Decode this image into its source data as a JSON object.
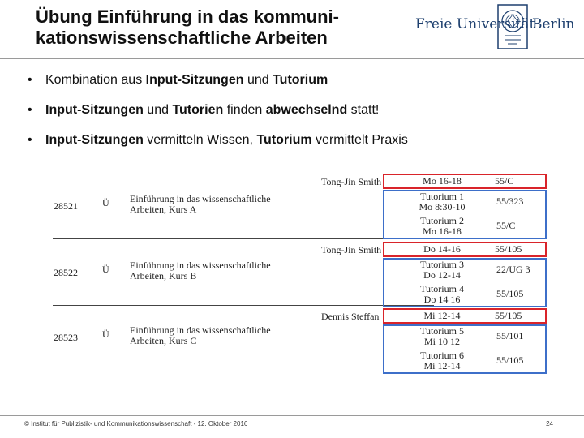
{
  "header": {
    "title_line1": "Übung Einführung in das kommuni-",
    "title_line2": "kationswissenschaftliche Arbeiten",
    "logo_left": "Freie Universität",
    "logo_right": "Berlin"
  },
  "bullets": [
    {
      "parts": [
        {
          "t": "Kombination aus ",
          "b": false
        },
        {
          "t": "Input-Sitzungen",
          "b": true
        },
        {
          "t": " und ",
          "b": false
        },
        {
          "t": "Tutorium",
          "b": true
        }
      ]
    },
    {
      "parts": [
        {
          "t": "Input-Sitzungen",
          "b": true
        },
        {
          "t": " und ",
          "b": false
        },
        {
          "t": "Tutorien",
          "b": true
        },
        {
          "t": " finden ",
          "b": false
        },
        {
          "t": "abwechselnd",
          "b": true
        },
        {
          "t": " statt!",
          "b": false
        }
      ]
    },
    {
      "parts": [
        {
          "t": "Input-Sitzungen",
          "b": true
        },
        {
          "t": " vermitteln Wissen, ",
          "b": false
        },
        {
          "t": "Tutorium",
          "b": true
        },
        {
          "t": " vermittelt Praxis",
          "b": false
        }
      ]
    }
  ],
  "bullet_symbol": "•",
  "courses": [
    {
      "number": "28521",
      "type": "Ü",
      "title1": "Einführung in das wissenschaftliche",
      "title2": "Arbeiten, Kurs A",
      "teacher": "Tong-Jin Smith",
      "sessions": [
        {
          "line1": "Mo 16-18",
          "line2": "",
          "room": "55/C"
        },
        {
          "line1": "Tutorium 1",
          "line2": "Mo 8:30-10",
          "room": "55/323"
        },
        {
          "line1": "Tutorium 2",
          "line2": "Mo 16-18",
          "room": "55/C"
        }
      ]
    },
    {
      "number": "28522",
      "type": "Ü",
      "title1": "Einführung in das wissenschaftliche",
      "title2": "Arbeiten, Kurs B",
      "teacher": "Tong-Jin Smith",
      "sessions": [
        {
          "line1": "Do 14-16",
          "line2": "",
          "room": "55/105"
        },
        {
          "line1": "Tutorium 3",
          "line2": "Do 12-14",
          "room": "22/UG 3"
        },
        {
          "line1": "Tutorium 4",
          "line2": "Do 14 16",
          "room": "55/105"
        }
      ]
    },
    {
      "number": "28523",
      "type": "Ü",
      "title1": "Einführung in das wissenschaftliche",
      "title2": "Arbeiten, Kurs C",
      "teacher": "Dennis Steffan",
      "sessions": [
        {
          "line1": "Mi 12-14",
          "line2": "",
          "room": "55/105"
        },
        {
          "line1": "Tutorium 5",
          "line2": "Mi 10 12",
          "room": "55/101"
        },
        {
          "line1": "Tutorium 6",
          "line2": "Mi 12-14",
          "room": "55/105"
        }
      ]
    }
  ],
  "footer": {
    "text": "© Institut für Publizistik- und Kommunikationswissenschaft - 12. Oktober 2016",
    "page": "24"
  },
  "colors": {
    "red_box": "#d9242a",
    "blue_box": "#3d6fc9",
    "logo": "#1d3f6e"
  }
}
